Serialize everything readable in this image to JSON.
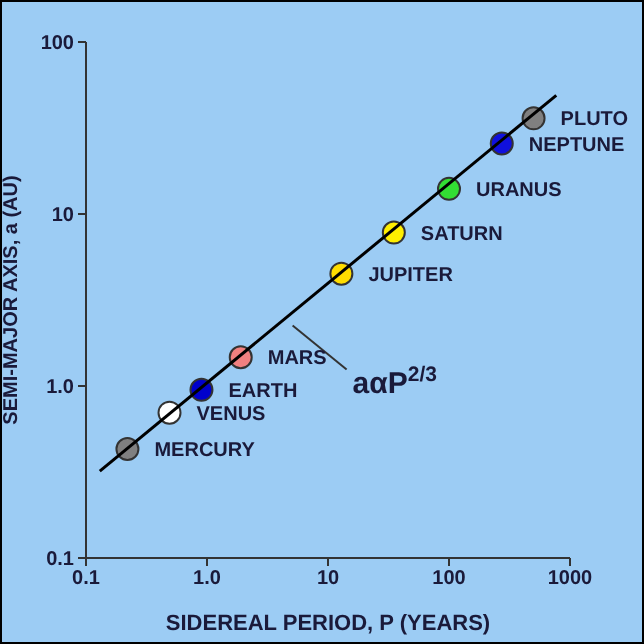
{
  "chart_data": {
    "type": "scatter",
    "xlabel": "SIDEREAL PERIOD, P (YEARS)",
    "ylabel": "SEMI-MAJOR AXIS, a (AU)",
    "log": "xy",
    "marker": "circle",
    "xlim": [
      0.1,
      1000
    ],
    "ylim": [
      0.1,
      100
    ],
    "xticks": [
      0.1,
      {
        "value": 1,
        "label": "1.0"
      },
      10,
      100,
      1000
    ],
    "yticks": [
      0.1,
      {
        "value": 1,
        "label": "1.0"
      },
      10,
      100
    ],
    "series": [
      {
        "name": "MERCURY",
        "color": "#808080",
        "x": [
          0.22
        ],
        "values": [
          0.43
        ]
      },
      {
        "name": "VENUS",
        "color": "#ffffff",
        "x": [
          0.49
        ],
        "values": [
          0.7
        ]
      },
      {
        "name": "EARTH",
        "color": "#0000cc",
        "x": [
          0.9
        ],
        "values": [
          0.95
        ]
      },
      {
        "name": "MARS",
        "color": "#f08080",
        "x": [
          1.9
        ],
        "values": [
          1.47
        ]
      },
      {
        "name": "JUPITER",
        "color": "#ffdd00",
        "x": [
          12.9
        ],
        "values": [
          4.5
        ]
      },
      {
        "name": "SATURN",
        "color": "#ffee00",
        "x": [
          35
        ],
        "values": [
          7.8
        ]
      },
      {
        "name": "URANUS",
        "color": "#33dd33",
        "x": [
          100
        ],
        "values": [
          14
        ]
      },
      {
        "name": "NEPTUNE",
        "color": "#1010dd",
        "x": [
          273
        ],
        "values": [
          25.7
        ]
      },
      {
        "name": "PLUTO",
        "color": "#808080",
        "x": [
          500
        ],
        "values": [
          36
        ]
      },
      {
        "type": "line",
        "marker": "none",
        "color": "#000000",
        "x": [
          0.13,
          770
        ],
        "values": [
          0.32,
          49
        ]
      }
    ],
    "annotations": [
      {
        "text": "aαP$^{2/3}$",
        "x": 5.1,
        "y": 2.25
      }
    ]
  }
}
